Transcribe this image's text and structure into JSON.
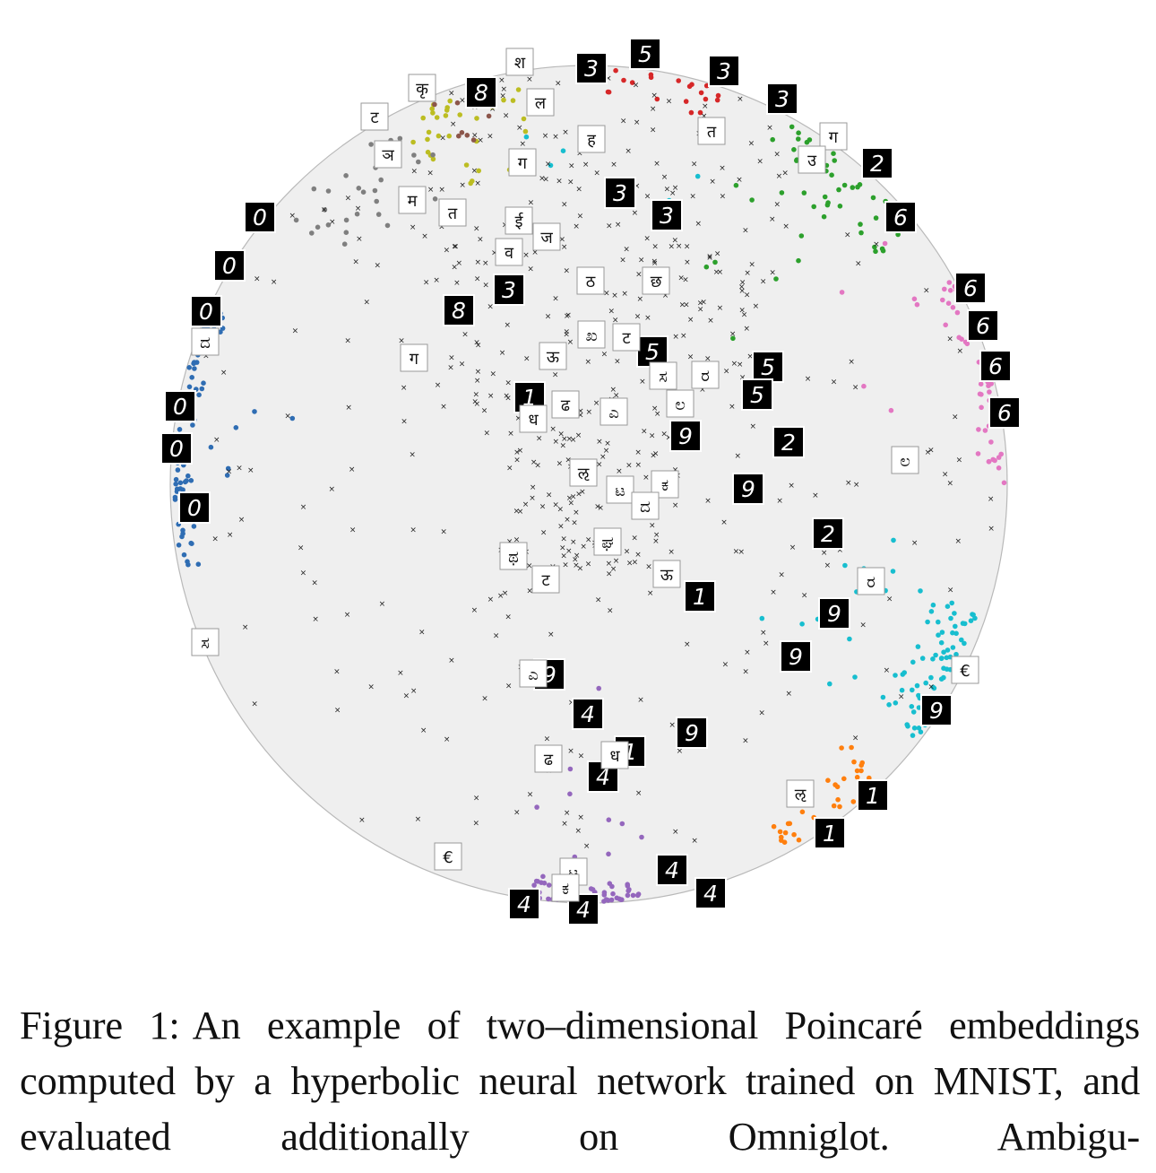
{
  "figure": {
    "caption_label": "Figure 1:",
    "caption_text": "An example of two–dimensional Poincaré embeddings computed by a hyperbolic neural network trained on MNIST, and evaluated additionally on Omniglot. Ambigu-"
  },
  "colors": {
    "disk_fill": "#efefef",
    "disk_stroke": "#b9b9b9",
    "class_0": "#2f6db3",
    "class_1": "#ff7f0e",
    "class_2": "#2ca02c",
    "class_3": "#d62728",
    "class_4": "#9467bd",
    "class_5": "#8c564b",
    "class_6": "#e377c2",
    "class_7": "#7f7f7f",
    "class_8": "#bcbd22",
    "class_9": "#17becf",
    "omniglot_marker": "#222222"
  },
  "chart_data": {
    "type": "scatter",
    "description_title": "",
    "mnist_thumbnail_digits": [
      "0",
      "0",
      "0",
      "0",
      "0",
      "8",
      "8",
      "3",
      "3",
      "3",
      "5",
      "3",
      "2",
      "6",
      "6",
      "6",
      "6",
      "6",
      "5",
      "5",
      "2",
      "2",
      "9",
      "9",
      "9",
      "9",
      "1",
      "1",
      "1",
      "1",
      "4",
      "4",
      "4",
      "4",
      "4",
      "9",
      "9",
      "9"
    ],
    "omniglot_thumbnail_glyphs": [
      "ट",
      "म",
      "त",
      "ञ",
      "कृ",
      "ग",
      "श",
      "ल",
      "ह",
      "व",
      "ई",
      "ज",
      "त",
      "ग",
      "उ",
      "छ",
      "ठ",
      "ट",
      "ऊ",
      "ग",
      "ಖ",
      "ರ",
      "ಲ",
      "ಸ",
      "ಎ",
      "ढ",
      "ध",
      "ऌ",
      "€",
      "ಟ",
      "ಕ",
      "ದ",
      "ಘ",
      "ಥ"
    ]
  }
}
